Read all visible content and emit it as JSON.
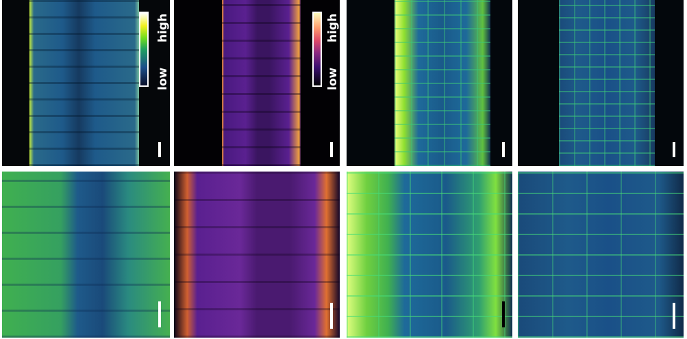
{
  "figure": {
    "colorbars": [
      {
        "panel": "top-1",
        "colormap": "green-fire-blue",
        "high_label": "high",
        "low_label": "low",
        "colors": [
          "#0a0f2a",
          "#1d4f8a",
          "#20a060",
          "#6ddc20",
          "#f0f020",
          "#ffffff"
        ]
      },
      {
        "panel": "top-2",
        "colormap": "inferno",
        "high_label": "high",
        "low_label": "low",
        "colors": [
          "#000004",
          "#3b0f70",
          "#8c2981",
          "#de4968",
          "#fe9f6d",
          "#fcfdbf"
        ]
      }
    ],
    "panels": [
      {
        "id": "top-1",
        "colormap": "green-fire-blue",
        "scale_bar": "white"
      },
      {
        "id": "top-2",
        "colormap": "inferno",
        "scale_bar": "white"
      },
      {
        "id": "top-3",
        "colormap": "green-fire-blue",
        "scale_bar": "white"
      },
      {
        "id": "top-4",
        "colormap": "green-fire-blue",
        "scale_bar": "white"
      },
      {
        "id": "bottom-1",
        "colormap": "green-fire-blue",
        "scale_bar": "white"
      },
      {
        "id": "bottom-2",
        "colormap": "inferno",
        "scale_bar": "white"
      },
      {
        "id": "bottom-3",
        "colormap": "green-fire-blue",
        "scale_bar": "black"
      },
      {
        "id": "bottom-4",
        "colormap": "green-fire-blue",
        "scale_bar": "white"
      }
    ]
  }
}
